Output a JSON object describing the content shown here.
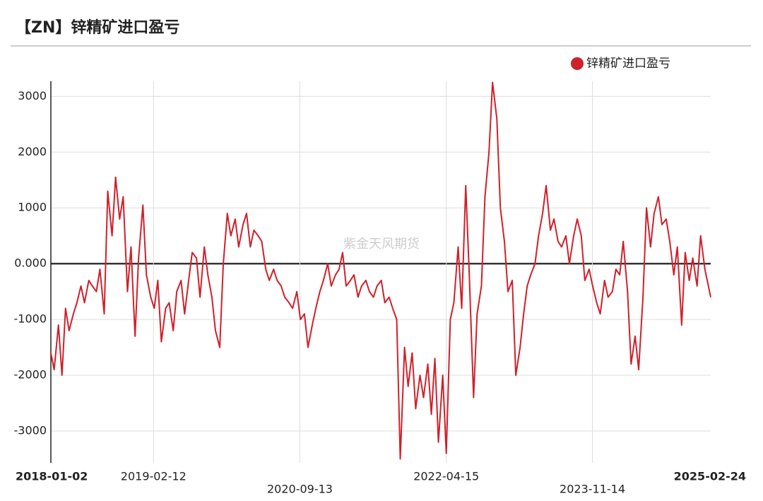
{
  "chart_data": {
    "type": "line",
    "title": "【ZN】锌精矿进口盈亏",
    "watermark": "紫金天风期货",
    "x": [
      "2018-01-02",
      "2018-01-15",
      "2018-02-01",
      "2018-02-15",
      "2018-03-01",
      "2018-03-15",
      "2018-04-01",
      "2018-04-15",
      "2018-05-01",
      "2018-05-15",
      "2018-06-01",
      "2018-06-15",
      "2018-07-01",
      "2018-07-15",
      "2018-08-01",
      "2018-08-15",
      "2018-09-01",
      "2018-09-15",
      "2018-10-01",
      "2018-10-15",
      "2018-11-01",
      "2018-11-15",
      "2018-12-01",
      "2018-12-15",
      "2019-01-01",
      "2019-01-15",
      "2019-02-01",
      "2019-02-15",
      "2019-03-01",
      "2019-03-15",
      "2019-04-01",
      "2019-04-15",
      "2019-05-01",
      "2019-05-15",
      "2019-06-01",
      "2019-06-15",
      "2019-07-01",
      "2019-07-15",
      "2019-08-01",
      "2019-08-15",
      "2019-09-01",
      "2019-09-15",
      "2019-10-01",
      "2019-10-15",
      "2019-11-01",
      "2019-11-15",
      "2019-12-01",
      "2019-12-15",
      "2020-01-01",
      "2020-01-15",
      "2020-02-01",
      "2020-02-15",
      "2020-03-01",
      "2020-03-15",
      "2020-04-01",
      "2020-04-15",
      "2020-05-01",
      "2020-05-15",
      "2020-06-01",
      "2020-06-15",
      "2020-07-01",
      "2020-07-15",
      "2020-08-01",
      "2020-08-15",
      "2020-09-01",
      "2020-09-15",
      "2020-10-01",
      "2020-10-15",
      "2020-11-01",
      "2020-11-15",
      "2020-12-01",
      "2020-12-15",
      "2021-01-01",
      "2021-01-15",
      "2021-02-01",
      "2021-02-15",
      "2021-03-01",
      "2021-03-15",
      "2021-04-01",
      "2021-04-15",
      "2021-05-01",
      "2021-05-15",
      "2021-06-01",
      "2021-06-15",
      "2021-07-01",
      "2021-07-15",
      "2021-08-01",
      "2021-08-15",
      "2021-09-01",
      "2021-09-15",
      "2021-10-01",
      "2021-10-15",
      "2021-11-01",
      "2021-11-15",
      "2021-12-01",
      "2021-12-15",
      "2022-01-01",
      "2022-01-15",
      "2022-02-01",
      "2022-02-15",
      "2022-03-01",
      "2022-03-15",
      "2022-04-01",
      "2022-04-15",
      "2022-05-01",
      "2022-05-15",
      "2022-06-01",
      "2022-06-15",
      "2022-07-01",
      "2022-07-15",
      "2022-08-01",
      "2022-08-15",
      "2022-09-01",
      "2022-09-15",
      "2022-10-01",
      "2022-10-15",
      "2022-11-01",
      "2022-11-15",
      "2022-12-01",
      "2022-12-15",
      "2023-01-01",
      "2023-01-15",
      "2023-02-01",
      "2023-02-15",
      "2023-03-01",
      "2023-03-15",
      "2023-04-01",
      "2023-04-15",
      "2023-05-01",
      "2023-05-15",
      "2023-06-01",
      "2023-06-15",
      "2023-07-01",
      "2023-07-15",
      "2023-08-01",
      "2023-08-15",
      "2023-09-01",
      "2023-09-15",
      "2023-10-01",
      "2023-10-15",
      "2023-11-01",
      "2023-11-15",
      "2023-12-01",
      "2023-12-15",
      "2024-01-01",
      "2024-01-15",
      "2024-02-01",
      "2024-02-15",
      "2024-03-01",
      "2024-03-15",
      "2024-04-01",
      "2024-04-15",
      "2024-05-01",
      "2024-05-15",
      "2024-06-01",
      "2024-06-15",
      "2024-07-01",
      "2024-07-15",
      "2024-08-01",
      "2024-08-15",
      "2024-09-01",
      "2024-09-15",
      "2024-10-01",
      "2024-10-15",
      "2024-11-01",
      "2024-11-15",
      "2024-12-01",
      "2024-12-15",
      "2025-01-01",
      "2025-01-15",
      "2025-02-01",
      "2025-02-24"
    ],
    "series": [
      {
        "name": "锌精矿进口盈亏",
        "color": "#d0202a",
        "values": [
          -1600,
          -1900,
          -1100,
          -2000,
          -800,
          -1200,
          -900,
          -700,
          -400,
          -700,
          -300,
          -400,
          -500,
          -100,
          -900,
          1300,
          500,
          1550,
          800,
          1200,
          -500,
          300,
          -1300,
          100,
          1050,
          -200,
          -600,
          -800,
          -300,
          -1400,
          -800,
          -700,
          -1200,
          -500,
          -300,
          -900,
          -300,
          200,
          100,
          -600,
          300,
          -200,
          -600,
          -1200,
          -1500,
          0,
          900,
          500,
          800,
          300,
          700,
          900,
          300,
          600,
          500,
          400,
          -100,
          -300,
          -100,
          -300,
          -400,
          -600,
          -700,
          -800,
          -500,
          -1000,
          -900,
          -1500,
          -1100,
          -800,
          -500,
          -300,
          0,
          -400,
          -200,
          -100,
          200,
          -400,
          -300,
          -200,
          -600,
          -400,
          -300,
          -500,
          -600,
          -400,
          -300,
          -700,
          -600,
          -800,
          -1000,
          -3500,
          -1500,
          -2200,
          -1600,
          -2600,
          -2000,
          -2400,
          -1800,
          -2700,
          -1700,
          -3200,
          -2000,
          -3400,
          -1000,
          -700,
          300,
          -800,
          1400,
          -200,
          -2400,
          -900,
          -400,
          1200,
          2000,
          3250,
          2600,
          1000,
          400,
          -500,
          -300,
          -2000,
          -1500,
          -900,
          -400,
          -200,
          0,
          500,
          900,
          1400,
          600,
          800,
          400,
          300,
          500,
          0,
          500,
          800,
          500,
          -300,
          -100,
          -400,
          -700,
          -900,
          -300,
          -600,
          -500,
          -100,
          -200,
          400,
          -500,
          -1800,
          -1300,
          -1900,
          -600,
          1000,
          300,
          900,
          1200,
          700,
          800,
          400,
          -200,
          300,
          -1100,
          200,
          -300,
          100,
          -400,
          500,
          -100,
          -600
        ]
      }
    ],
    "xlim": [
      "2018-01-02",
      "2025-02-24"
    ],
    "xticks": [
      "2018-01-02",
      "2019-02-12",
      "2020-09-13",
      "2022-04-15",
      "2023-11-14",
      "2025-02-24"
    ],
    "ylim": [
      -3570,
      3270
    ],
    "yticks": [
      -3000,
      -2000,
      -1000,
      {
        "value": 0,
        "label": "0.000"
      },
      1000,
      2000,
      3000
    ],
    "grid": true,
    "legend": "top-right"
  }
}
